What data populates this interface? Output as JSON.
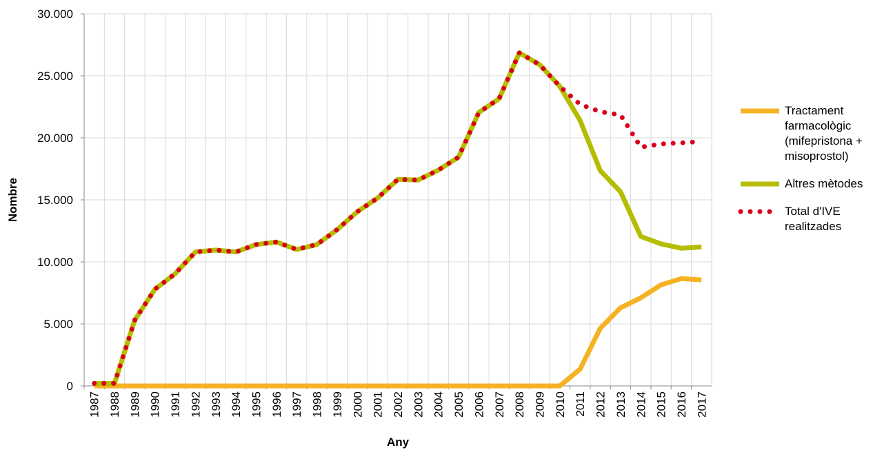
{
  "chart_data": {
    "type": "line",
    "x_label": "Any",
    "y_label": "Nombre",
    "categories": [
      "1987",
      "1988",
      "1989",
      "1990",
      "1991",
      "1992",
      "1993",
      "1994",
      "1995",
      "1996",
      "1997",
      "1998",
      "1999",
      "2000",
      "2001",
      "2002",
      "2003",
      "2004",
      "2005",
      "2006",
      "2007",
      "2008",
      "2009",
      "2010",
      "2011",
      "2012",
      "2013",
      "2014",
      "2015",
      "2016",
      "2017"
    ],
    "series": [
      {
        "name": "Tractament farmacològic (mifepristona + misoprostol)",
        "color": "#f5b324",
        "style": "solid",
        "values": [
          0,
          0,
          0,
          0,
          0,
          0,
          0,
          0,
          0,
          0,
          0,
          0,
          0,
          0,
          0,
          0,
          0,
          0,
          0,
          0,
          0,
          0,
          0,
          0,
          1350,
          4650,
          6300,
          7100,
          8150,
          8650,
          8550
        ]
      },
      {
        "name": "Altres mètodes",
        "color": "#b5bd00",
        "style": "solid",
        "values": [
          200,
          200,
          5300,
          7800,
          9050,
          10800,
          10950,
          10800,
          11400,
          11600,
          11000,
          11400,
          12600,
          14050,
          15150,
          16650,
          16600,
          17400,
          18450,
          22050,
          23150,
          26850,
          25900,
          24150,
          21400,
          17350,
          15650,
          12050,
          11450,
          11100,
          11200
        ]
      },
      {
        "name": "Total d'IVE realitzades",
        "color": "#d9001b",
        "style": "dotted",
        "values": [
          200,
          200,
          5300,
          7800,
          9050,
          10800,
          10950,
          10800,
          11400,
          11600,
          11000,
          11400,
          12600,
          14050,
          15150,
          16650,
          16600,
          17400,
          18450,
          22050,
          23150,
          26850,
          25900,
          24150,
          22700,
          22100,
          21850,
          19250,
          19500,
          19600,
          19700
        ]
      }
    ],
    "ylim": [
      0,
      30000
    ],
    "yticks": [
      0,
      {
        "value": 5000,
        "label": "5.000"
      },
      {
        "value": 10000,
        "label": "10.000"
      },
      {
        "value": 15000,
        "label": "15.000"
      },
      {
        "value": 20000,
        "label": "20.000"
      },
      {
        "value": 25000,
        "label": "25.000"
      },
      {
        "value": 30000,
        "label": "30.000"
      }
    ],
    "grid": true,
    "legend": "right"
  }
}
